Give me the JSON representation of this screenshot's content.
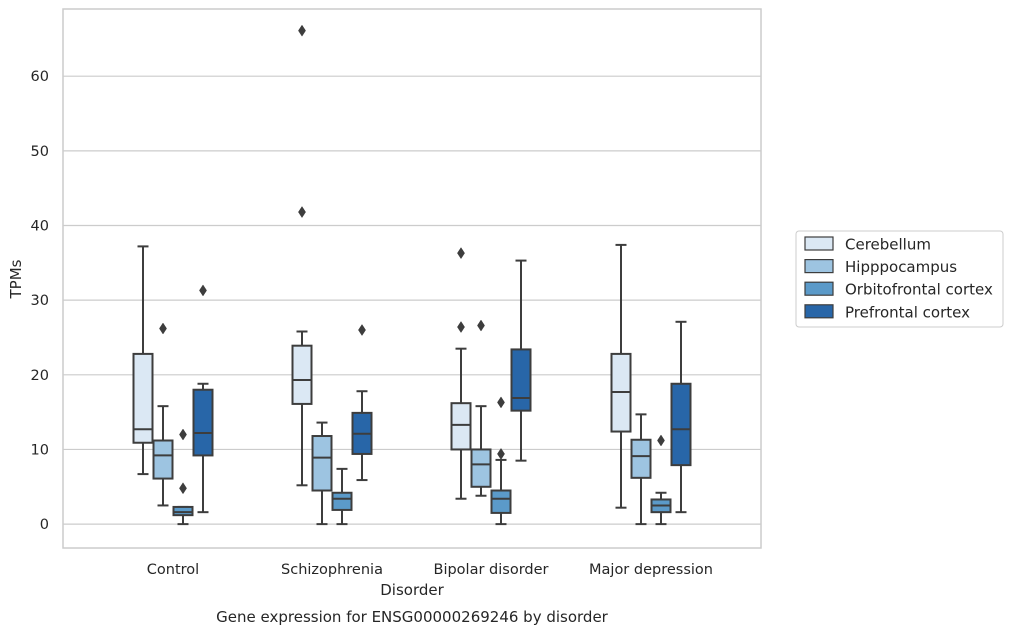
{
  "chart_data": {
    "type": "boxplot",
    "title": "Gene expression for ENSG00000269246 by disorder",
    "xlabel": "Disorder",
    "ylabel": "TPMs",
    "ylim": [
      -3.2,
      69
    ],
    "yticks": [
      0,
      10,
      20,
      30,
      40,
      50,
      60
    ],
    "grid": true,
    "legend_position": "right",
    "categories": [
      "Control",
      "Schizophrenia",
      "Bipolar disorder",
      "Major depression"
    ],
    "series": [
      {
        "name": "Cerebellum",
        "color": "#dbe8f4",
        "boxes": [
          {
            "whisker_low": 6.7,
            "q1": 10.9,
            "median": 12.7,
            "q3": 22.8,
            "whisker_high": 37.2,
            "outliers": []
          },
          {
            "whisker_low": 5.2,
            "q1": 16.1,
            "median": 19.3,
            "q3": 23.9,
            "whisker_high": 25.8,
            "outliers": [
              41.8,
              66.1
            ]
          },
          {
            "whisker_low": 3.4,
            "q1": 10.0,
            "median": 13.3,
            "q3": 16.2,
            "whisker_high": 23.5,
            "outliers": [
              26.4,
              36.3
            ]
          },
          {
            "whisker_low": 2.2,
            "q1": 12.4,
            "median": 17.7,
            "q3": 22.8,
            "whisker_high": 37.4,
            "outliers": []
          }
        ]
      },
      {
        "name": "Hipppocampus",
        "color": "#9dc4e1",
        "boxes": [
          {
            "whisker_low": 2.5,
            "q1": 6.1,
            "median": 9.2,
            "q3": 11.2,
            "whisker_high": 15.8,
            "outliers": [
              26.2
            ]
          },
          {
            "whisker_low": 0.0,
            "q1": 4.5,
            "median": 8.9,
            "q3": 11.8,
            "whisker_high": 13.6,
            "outliers": []
          },
          {
            "whisker_low": 3.8,
            "q1": 5.0,
            "median": 8.0,
            "q3": 10.0,
            "whisker_high": 15.8,
            "outliers": [
              26.6
            ]
          },
          {
            "whisker_low": 0.0,
            "q1": 6.2,
            "median": 9.1,
            "q3": 11.3,
            "whisker_high": 14.7,
            "outliers": []
          }
        ]
      },
      {
        "name": "Orbitofrontal cortex",
        "color": "#5b9ac9",
        "boxes": [
          {
            "whisker_low": 0.0,
            "q1": 1.2,
            "median": 1.6,
            "q3": 2.3,
            "whisker_high": 2.3,
            "outliers": [
              4.8,
              12.0
            ]
          },
          {
            "whisker_low": 0.0,
            "q1": 1.9,
            "median": 3.4,
            "q3": 4.2,
            "whisker_high": 7.4,
            "outliers": []
          },
          {
            "whisker_low": 0.0,
            "q1": 1.5,
            "median": 3.4,
            "q3": 4.5,
            "whisker_high": 8.6,
            "outliers": [
              9.4,
              16.3
            ]
          },
          {
            "whisker_low": 0.0,
            "q1": 1.6,
            "median": 2.5,
            "q3": 3.3,
            "whisker_high": 4.2,
            "outliers": [
              11.2
            ]
          }
        ]
      },
      {
        "name": "Prefrontal cortex",
        "color": "#2866a8",
        "boxes": [
          {
            "whisker_low": 1.6,
            "q1": 9.2,
            "median": 12.2,
            "q3": 18.0,
            "whisker_high": 18.8,
            "outliers": [
              31.3
            ]
          },
          {
            "whisker_low": 5.9,
            "q1": 9.4,
            "median": 12.1,
            "q3": 14.9,
            "whisker_high": 17.8,
            "outliers": [
              26.0
            ]
          },
          {
            "whisker_low": 8.5,
            "q1": 15.2,
            "median": 16.9,
            "q3": 23.4,
            "whisker_high": 35.3,
            "outliers": []
          },
          {
            "whisker_low": 1.6,
            "q1": 7.9,
            "median": 12.7,
            "q3": 18.8,
            "whisker_high": 27.1,
            "outliers": []
          }
        ]
      }
    ]
  }
}
